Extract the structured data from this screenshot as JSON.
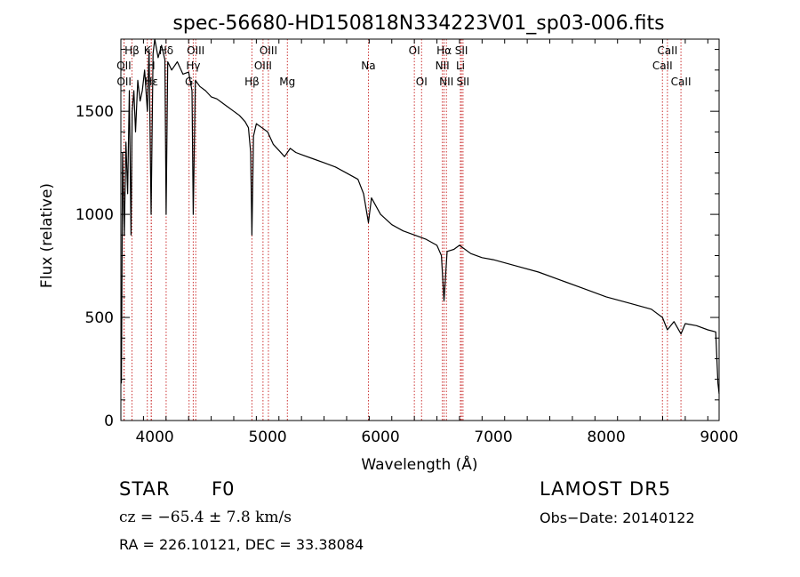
{
  "title": "spec-56680-HD150818N334223V01_sp03-006.fits",
  "info": {
    "class_label": "STAR",
    "subclass": "F0",
    "survey": "LAMOST DR5",
    "cz": "cz = −65.4 ± 7.8 km/s",
    "obs_date": "Obs−Date: 20140122",
    "radec": "RA = 226.10121, DEC =  33.38084"
  },
  "chart_data": {
    "type": "line",
    "title": "spec-56680-HD150818N334223V01_sp03-006.fits",
    "xlabel": "Wavelength (Å)",
    "ylabel": "Flux (relative)",
    "xlim": [
      3700,
      9000
    ],
    "ylim": [
      0,
      1850
    ],
    "xticks": [
      4000,
      5000,
      6000,
      7000,
      8000,
      9000
    ],
    "yticks": [
      0,
      500,
      1000,
      1500
    ],
    "grid": false,
    "line_color": "#000000",
    "marker_color": "#cc3333",
    "series": [
      {
        "x": [
          3705,
          3715,
          3730,
          3745,
          3760,
          3775,
          3790,
          3800,
          3815,
          3830,
          3850,
          3870,
          3890,
          3910,
          3935,
          3950,
          3968,
          3985,
          4000,
          4030,
          4060,
          4090,
          4101,
          4115,
          4150,
          4200,
          4250,
          4300,
          4330,
          4341,
          4360,
          4400,
          4450,
          4500,
          4550,
          4600,
          4650,
          4700,
          4750,
          4800,
          4830,
          4850,
          4861,
          4875,
          4900,
          4950,
          5000,
          5050,
          5100,
          5150,
          5200,
          5250,
          5300,
          5400,
          5500,
          5600,
          5700,
          5800,
          5850,
          5893,
          5920,
          6000,
          6100,
          6200,
          6300,
          6400,
          6500,
          6540,
          6563,
          6590,
          6650,
          6700,
          6800,
          6900,
          7000,
          7200,
          7400,
          7600,
          7800,
          8000,
          8200,
          8400,
          8498,
          8542,
          8600,
          8662,
          8700,
          8800,
          8900,
          8970,
          8990,
          9000
        ],
        "y": [
          180,
          1300,
          900,
          1350,
          1100,
          1600,
          900,
          1500,
          1600,
          1400,
          1650,
          1550,
          1600,
          1700,
          1500,
          1800,
          1000,
          1780,
          1850,
          1760,
          1820,
          1750,
          1000,
          1740,
          1700,
          1740,
          1680,
          1690,
          1600,
          1000,
          1650,
          1620,
          1600,
          1570,
          1560,
          1540,
          1520,
          1500,
          1480,
          1450,
          1420,
          1300,
          900,
          1380,
          1440,
          1420,
          1400,
          1340,
          1310,
          1280,
          1320,
          1300,
          1290,
          1270,
          1250,
          1230,
          1200,
          1170,
          1100,
          960,
          1080,
          1000,
          950,
          920,
          900,
          880,
          850,
          800,
          580,
          820,
          830,
          850,
          810,
          790,
          780,
          750,
          720,
          680,
          640,
          600,
          570,
          540,
          500,
          440,
          480,
          420,
          470,
          460,
          440,
          430,
          180,
          130
        ]
      }
    ],
    "lines": [
      {
        "label": "Hβ",
        "wave": 3798,
        "row": 1
      },
      {
        "label": "OII",
        "wave": 3727,
        "row": 2
      },
      {
        "label": "OII",
        "wave": 3729,
        "row": 3
      },
      {
        "label": "K",
        "wave": 3934,
        "row": 1
      },
      {
        "label": "H",
        "wave": 3969,
        "row": 2
      },
      {
        "label": "Hε",
        "wave": 3970,
        "row": 3
      },
      {
        "label": "Hδ",
        "wave": 4101,
        "row": 1
      },
      {
        "label": "OIII",
        "wave": 4363,
        "row": 1
      },
      {
        "label": "Hγ",
        "wave": 4341,
        "row": 2
      },
      {
        "label": "G",
        "wave": 4304,
        "row": 3
      },
      {
        "label": "OIII",
        "wave": 5007,
        "row": 1
      },
      {
        "label": "OIII",
        "wave": 4959,
        "row": 2
      },
      {
        "label": "Hβ",
        "wave": 4861,
        "row": 3
      },
      {
        "label": "Mg",
        "wave": 5175,
        "row": 3
      },
      {
        "label": "Na",
        "wave": 5893,
        "row": 2
      },
      {
        "label": "OI",
        "wave": 6300,
        "row": 1
      },
      {
        "label": "OI",
        "wave": 6364,
        "row": 3
      },
      {
        "label": "Hα",
        "wave": 6563,
        "row": 1
      },
      {
        "label": "NII",
        "wave": 6548,
        "row": 2
      },
      {
        "label": "NII",
        "wave": 6584,
        "row": 3
      },
      {
        "label": "SII",
        "wave": 6717,
        "row": 1
      },
      {
        "label": "Li",
        "wave": 6708,
        "row": 2
      },
      {
        "label": "SII",
        "wave": 6731,
        "row": 3
      },
      {
        "label": "CaII",
        "wave": 8542,
        "row": 1
      },
      {
        "label": "CaII",
        "wave": 8498,
        "row": 2
      },
      {
        "label": "CaII",
        "wave": 8662,
        "row": 3
      }
    ]
  }
}
